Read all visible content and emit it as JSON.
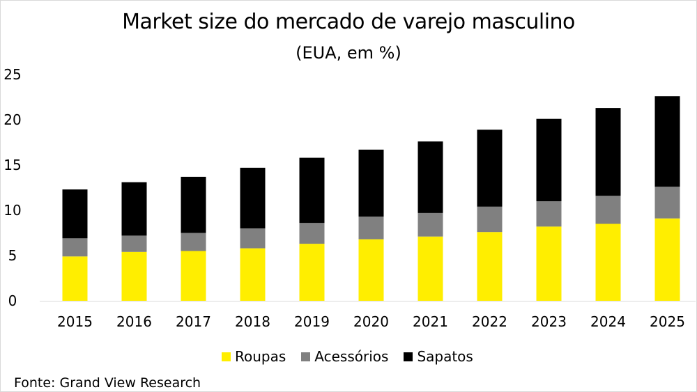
{
  "chart_data": {
    "type": "bar",
    "stacked": true,
    "title": "Market size do mercado de varejo masculino",
    "subtitle": "(EUA, em %)",
    "categories": [
      "2015",
      "2016",
      "2017",
      "2018",
      "2019",
      "2020",
      "2021",
      "2022",
      "2023",
      "2024",
      "2025"
    ],
    "series": [
      {
        "name": "Roupas",
        "color": "#ffee00",
        "values": [
          4.9,
          5.4,
          5.5,
          5.8,
          6.3,
          6.8,
          7.1,
          7.6,
          8.2,
          8.5,
          9.1
        ]
      },
      {
        "name": "Acessórios",
        "color": "#808080",
        "values": [
          2.0,
          1.8,
          2.0,
          2.2,
          2.3,
          2.5,
          2.6,
          2.8,
          2.8,
          3.1,
          3.5
        ]
      },
      {
        "name": "Sapatos",
        "color": "#000000",
        "values": [
          5.4,
          5.9,
          6.2,
          6.7,
          7.2,
          7.4,
          7.9,
          8.5,
          9.1,
          9.7,
          10.0
        ]
      }
    ],
    "ylim": [
      0,
      25
    ],
    "yticks": [
      "0",
      "5",
      "10",
      "15",
      "20",
      "25"
    ],
    "ytick_values": [
      0,
      5,
      10,
      15,
      20,
      25
    ],
    "grid": false,
    "legend_position": "bottom"
  },
  "source_text": "Fonte: Grand View Research"
}
